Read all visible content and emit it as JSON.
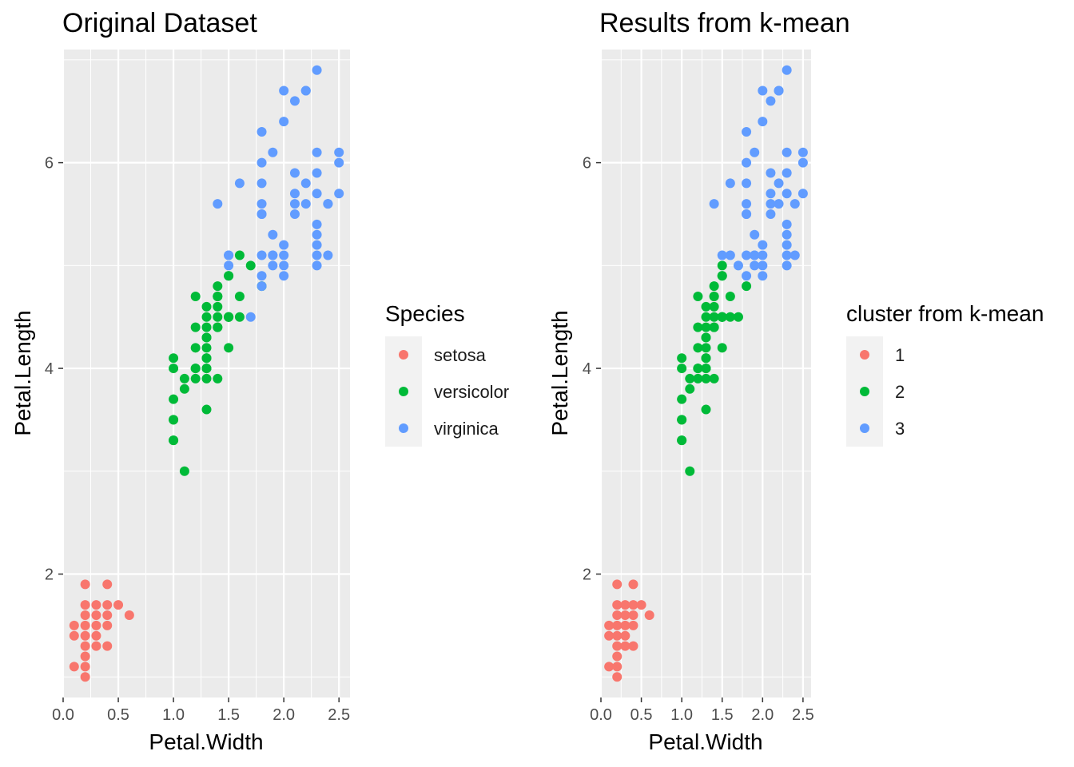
{
  "chart_data": [
    {
      "type": "scatter",
      "title": "Original Dataset",
      "xlabel": "Petal.Width",
      "ylabel": "Petal.Length",
      "xlim": [
        0,
        2.6
      ],
      "ylim": [
        0.8,
        7.1
      ],
      "x_ticks": [
        0.0,
        0.5,
        1.0,
        1.5,
        2.0,
        2.5
      ],
      "x_tick_labels": [
        "0.0",
        "0.5",
        "1.0",
        "1.5",
        "2.0",
        "2.5"
      ],
      "y_ticks": [
        2,
        4,
        6
      ],
      "y_tick_labels": [
        "2",
        "4",
        "6"
      ],
      "grid": true,
      "legend": {
        "title": "Species",
        "position": "right",
        "entries": [
          {
            "label": "setosa",
            "color": "#F8766D"
          },
          {
            "label": "versicolor",
            "color": "#00BA38"
          },
          {
            "label": "virginica",
            "color": "#619CFF"
          }
        ]
      },
      "series": [
        {
          "name": "setosa",
          "color": "#F8766D",
          "points": [
            [
              0.2,
              1.4
            ],
            [
              0.2,
              1.3
            ],
            [
              0.2,
              1.5
            ],
            [
              0.2,
              1.7
            ],
            [
              0.4,
              1.7
            ],
            [
              0.3,
              1.4
            ],
            [
              0.1,
              1.5
            ],
            [
              0.1,
              1.1
            ],
            [
              0.2,
              1.2
            ],
            [
              0.4,
              1.5
            ],
            [
              0.4,
              1.3
            ],
            [
              0.3,
              1.7
            ],
            [
              0.3,
              1.5
            ],
            [
              0.2,
              1.0
            ],
            [
              0.5,
              1.7
            ],
            [
              0.2,
              1.9
            ],
            [
              0.2,
              1.6
            ],
            [
              0.4,
              1.6
            ],
            [
              0.1,
              1.4
            ],
            [
              0.4,
              1.9
            ],
            [
              0.3,
              1.3
            ],
            [
              0.3,
              1.6
            ],
            [
              0.6,
              1.6
            ],
            [
              0.2,
              1.1
            ]
          ]
        },
        {
          "name": "versicolor",
          "color": "#00BA38",
          "points": [
            [
              1.4,
              4.7
            ],
            [
              1.5,
              4.5
            ],
            [
              1.5,
              4.9
            ],
            [
              1.3,
              4.0
            ],
            [
              1.3,
              4.6
            ],
            [
              1.6,
              4.7
            ],
            [
              1.0,
              3.3
            ],
            [
              1.3,
              3.9
            ],
            [
              1.4,
              3.9
            ],
            [
              1.0,
              3.5
            ],
            [
              1.5,
              4.2
            ],
            [
              1.0,
              4.0
            ],
            [
              1.4,
              4.7
            ],
            [
              1.3,
              3.6
            ],
            [
              1.4,
              4.4
            ],
            [
              1.5,
              4.5
            ],
            [
              1.0,
              4.1
            ],
            [
              1.5,
              4.5
            ],
            [
              1.1,
              3.9
            ],
            [
              1.8,
              4.8
            ],
            [
              1.3,
              4.0
            ],
            [
              1.5,
              4.9
            ],
            [
              1.2,
              4.7
            ],
            [
              1.3,
              4.3
            ],
            [
              1.4,
              4.4
            ],
            [
              1.4,
              4.8
            ],
            [
              1.7,
              5.0
            ],
            [
              1.5,
              4.5
            ],
            [
              1.0,
              3.5
            ],
            [
              1.1,
              3.8
            ],
            [
              1.0,
              3.7
            ],
            [
              1.2,
              3.9
            ],
            [
              1.6,
              5.1
            ],
            [
              1.5,
              4.5
            ],
            [
              1.6,
              4.5
            ],
            [
              1.3,
              4.4
            ],
            [
              1.3,
              4.1
            ],
            [
              1.3,
              4.5
            ],
            [
              1.2,
              4.0
            ],
            [
              1.4,
              4.6
            ],
            [
              1.2,
              4.4
            ],
            [
              1.0,
              3.3
            ],
            [
              1.3,
              4.2
            ],
            [
              1.2,
              4.2
            ],
            [
              1.3,
              4.3
            ],
            [
              1.1,
              3.0
            ],
            [
              1.3,
              4.1
            ],
            [
              1.4,
              4.5
            ],
            [
              1.2,
              4.0
            ]
          ]
        },
        {
          "name": "virginica",
          "color": "#619CFF",
          "points": [
            [
              2.5,
              6.0
            ],
            [
              1.9,
              5.1
            ],
            [
              2.1,
              5.9
            ],
            [
              1.8,
              5.6
            ],
            [
              2.2,
              5.8
            ],
            [
              2.1,
              6.6
            ],
            [
              1.7,
              4.5
            ],
            [
              1.8,
              6.3
            ],
            [
              2.5,
              6.1
            ],
            [
              2.0,
              5.1
            ],
            [
              1.9,
              5.3
            ],
            [
              2.1,
              5.5
            ],
            [
              2.0,
              5.0
            ],
            [
              2.4,
              5.1
            ],
            [
              2.3,
              5.3
            ],
            [
              1.8,
              5.5
            ],
            [
              2.2,
              6.7
            ],
            [
              2.3,
              6.9
            ],
            [
              1.5,
              5.0
            ],
            [
              2.3,
              5.7
            ],
            [
              2.0,
              4.9
            ],
            [
              2.0,
              6.7
            ],
            [
              1.8,
              4.9
            ],
            [
              2.1,
              5.7
            ],
            [
              1.8,
              6.0
            ],
            [
              1.8,
              4.8
            ],
            [
              2.1,
              5.6
            ],
            [
              1.6,
              5.8
            ],
            [
              1.9,
              6.1
            ],
            [
              2.0,
              6.4
            ],
            [
              2.2,
              5.6
            ],
            [
              1.5,
              5.1
            ],
            [
              1.4,
              5.6
            ],
            [
              2.3,
              6.1
            ],
            [
              2.4,
              5.6
            ],
            [
              1.8,
              5.5
            ],
            [
              2.4,
              5.6
            ],
            [
              2.3,
              5.1
            ],
            [
              2.3,
              5.9
            ],
            [
              2.5,
              5.7
            ],
            [
              2.3,
              5.2
            ],
            [
              1.9,
              5.0
            ],
            [
              2.0,
              5.2
            ],
            [
              2.3,
              5.4
            ],
            [
              1.8,
              5.1
            ],
            [
              1.5,
              5.1
            ],
            [
              1.9,
              5.1
            ],
            [
              2.3,
              5.0
            ],
            [
              1.8,
              5.8
            ],
            [
              2.2,
              6.7
            ]
          ]
        }
      ]
    },
    {
      "type": "scatter",
      "title": "Results from k-mean",
      "xlabel": "Petal.Width",
      "ylabel": "Petal.Length",
      "xlim": [
        0,
        2.6
      ],
      "ylim": [
        0.8,
        7.1
      ],
      "x_ticks": [
        0.0,
        0.5,
        1.0,
        1.5,
        2.0,
        2.5
      ],
      "x_tick_labels": [
        "0.0",
        "0.5",
        "1.0",
        "1.5",
        "2.0",
        "2.5"
      ],
      "y_ticks": [
        2,
        4,
        6
      ],
      "y_tick_labels": [
        "2",
        "4",
        "6"
      ],
      "grid": true,
      "legend": {
        "title": "cluster from k-mean",
        "position": "right",
        "entries": [
          {
            "label": "1",
            "color": "#F8766D"
          },
          {
            "label": "2",
            "color": "#00BA38"
          },
          {
            "label": "3",
            "color": "#619CFF"
          }
        ]
      },
      "series": [
        {
          "name": "1",
          "color": "#F8766D",
          "points": [
            [
              0.2,
              1.4
            ],
            [
              0.2,
              1.3
            ],
            [
              0.2,
              1.5
            ],
            [
              0.2,
              1.7
            ],
            [
              0.4,
              1.7
            ],
            [
              0.3,
              1.4
            ],
            [
              0.1,
              1.5
            ],
            [
              0.1,
              1.1
            ],
            [
              0.2,
              1.2
            ],
            [
              0.4,
              1.5
            ],
            [
              0.4,
              1.3
            ],
            [
              0.3,
              1.7
            ],
            [
              0.3,
              1.5
            ],
            [
              0.2,
              1.0
            ],
            [
              0.5,
              1.7
            ],
            [
              0.2,
              1.9
            ],
            [
              0.2,
              1.6
            ],
            [
              0.4,
              1.6
            ],
            [
              0.1,
              1.4
            ],
            [
              0.4,
              1.9
            ],
            [
              0.3,
              1.3
            ],
            [
              0.3,
              1.6
            ],
            [
              0.6,
              1.6
            ],
            [
              0.2,
              1.1
            ]
          ]
        },
        {
          "name": "2",
          "color": "#00BA38",
          "points": [
            [
              1.4,
              4.7
            ],
            [
              1.5,
              4.5
            ],
            [
              1.5,
              4.9
            ],
            [
              1.3,
              4.0
            ],
            [
              1.3,
              4.6
            ],
            [
              1.6,
              4.7
            ],
            [
              1.0,
              3.3
            ],
            [
              1.3,
              3.9
            ],
            [
              1.4,
              3.9
            ],
            [
              1.0,
              3.5
            ],
            [
              1.5,
              4.2
            ],
            [
              1.0,
              4.0
            ],
            [
              1.4,
              4.7
            ],
            [
              1.3,
              3.6
            ],
            [
              1.4,
              4.4
            ],
            [
              1.5,
              4.5
            ],
            [
              1.0,
              4.1
            ],
            [
              1.5,
              4.5
            ],
            [
              1.1,
              3.9
            ],
            [
              1.8,
              4.8
            ],
            [
              1.3,
              4.0
            ],
            [
              1.2,
              4.7
            ],
            [
              1.3,
              4.3
            ],
            [
              1.4,
              4.4
            ],
            [
              1.4,
              4.8
            ],
            [
              1.5,
              4.5
            ],
            [
              1.0,
              3.5
            ],
            [
              1.1,
              3.8
            ],
            [
              1.0,
              3.7
            ],
            [
              1.2,
              3.9
            ],
            [
              1.5,
              4.5
            ],
            [
              1.6,
              4.5
            ],
            [
              1.3,
              4.4
            ],
            [
              1.3,
              4.1
            ],
            [
              1.3,
              4.5
            ],
            [
              1.2,
              4.0
            ],
            [
              1.4,
              4.6
            ],
            [
              1.2,
              4.4
            ],
            [
              1.0,
              3.3
            ],
            [
              1.3,
              4.2
            ],
            [
              1.2,
              4.2
            ],
            [
              1.3,
              4.3
            ],
            [
              1.1,
              3.0
            ],
            [
              1.3,
              4.1
            ],
            [
              1.4,
              4.5
            ],
            [
              1.2,
              4.0
            ],
            [
              1.7,
              4.5
            ],
            [
              1.5,
              5.0
            ],
            [
              1.5,
              4.9
            ]
          ]
        },
        {
          "name": "3",
          "color": "#619CFF",
          "points": [
            [
              2.5,
              6.0
            ],
            [
              1.9,
              5.1
            ],
            [
              2.1,
              5.9
            ],
            [
              1.8,
              5.6
            ],
            [
              2.2,
              5.8
            ],
            [
              2.1,
              6.6
            ],
            [
              1.8,
              6.3
            ],
            [
              2.5,
              6.1
            ],
            [
              2.0,
              5.1
            ],
            [
              1.9,
              5.3
            ],
            [
              2.1,
              5.5
            ],
            [
              2.0,
              5.0
            ],
            [
              2.4,
              5.1
            ],
            [
              2.3,
              5.3
            ],
            [
              1.8,
              5.5
            ],
            [
              2.2,
              6.7
            ],
            [
              2.3,
              6.9
            ],
            [
              2.3,
              5.7
            ],
            [
              2.0,
              4.9
            ],
            [
              2.0,
              6.7
            ],
            [
              1.8,
              4.9
            ],
            [
              2.1,
              5.7
            ],
            [
              1.8,
              6.0
            ],
            [
              2.1,
              5.6
            ],
            [
              1.6,
              5.8
            ],
            [
              1.9,
              6.1
            ],
            [
              2.0,
              6.4
            ],
            [
              2.2,
              5.6
            ],
            [
              1.5,
              5.1
            ],
            [
              1.4,
              5.6
            ],
            [
              2.3,
              6.1
            ],
            [
              2.4,
              5.6
            ],
            [
              1.8,
              5.5
            ],
            [
              2.3,
              5.1
            ],
            [
              2.3,
              5.9
            ],
            [
              2.5,
              5.7
            ],
            [
              2.3,
              5.2
            ],
            [
              1.9,
              5.0
            ],
            [
              2.0,
              5.2
            ],
            [
              2.3,
              5.4
            ],
            [
              1.8,
              5.1
            ],
            [
              1.6,
              5.1
            ],
            [
              1.9,
              5.1
            ],
            [
              2.3,
              5.0
            ],
            [
              1.8,
              5.8
            ],
            [
              2.2,
              6.7
            ],
            [
              1.7,
              5.0
            ]
          ]
        }
      ]
    }
  ]
}
